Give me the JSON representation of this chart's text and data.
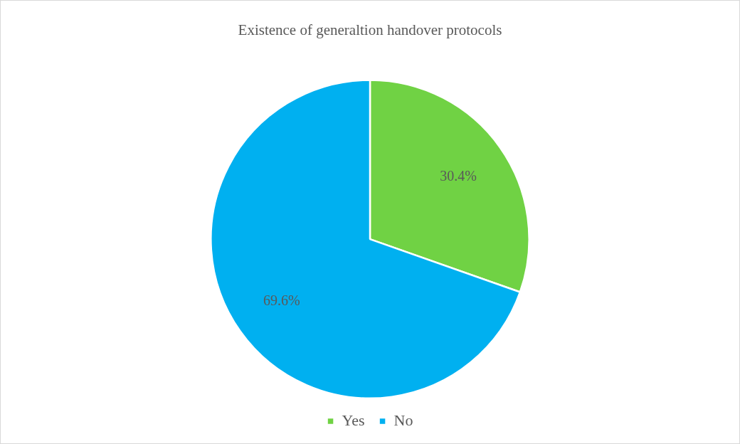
{
  "chart_data": {
    "type": "pie",
    "title": "Existence of generaltion handover protocols",
    "categories": [
      "Yes",
      "No"
    ],
    "values": [
      30.4,
      69.6
    ],
    "colors": [
      "#70d244",
      "#00b0f0"
    ],
    "value_labels": [
      "30.4%",
      "69.6%"
    ],
    "legend": "bottom"
  }
}
